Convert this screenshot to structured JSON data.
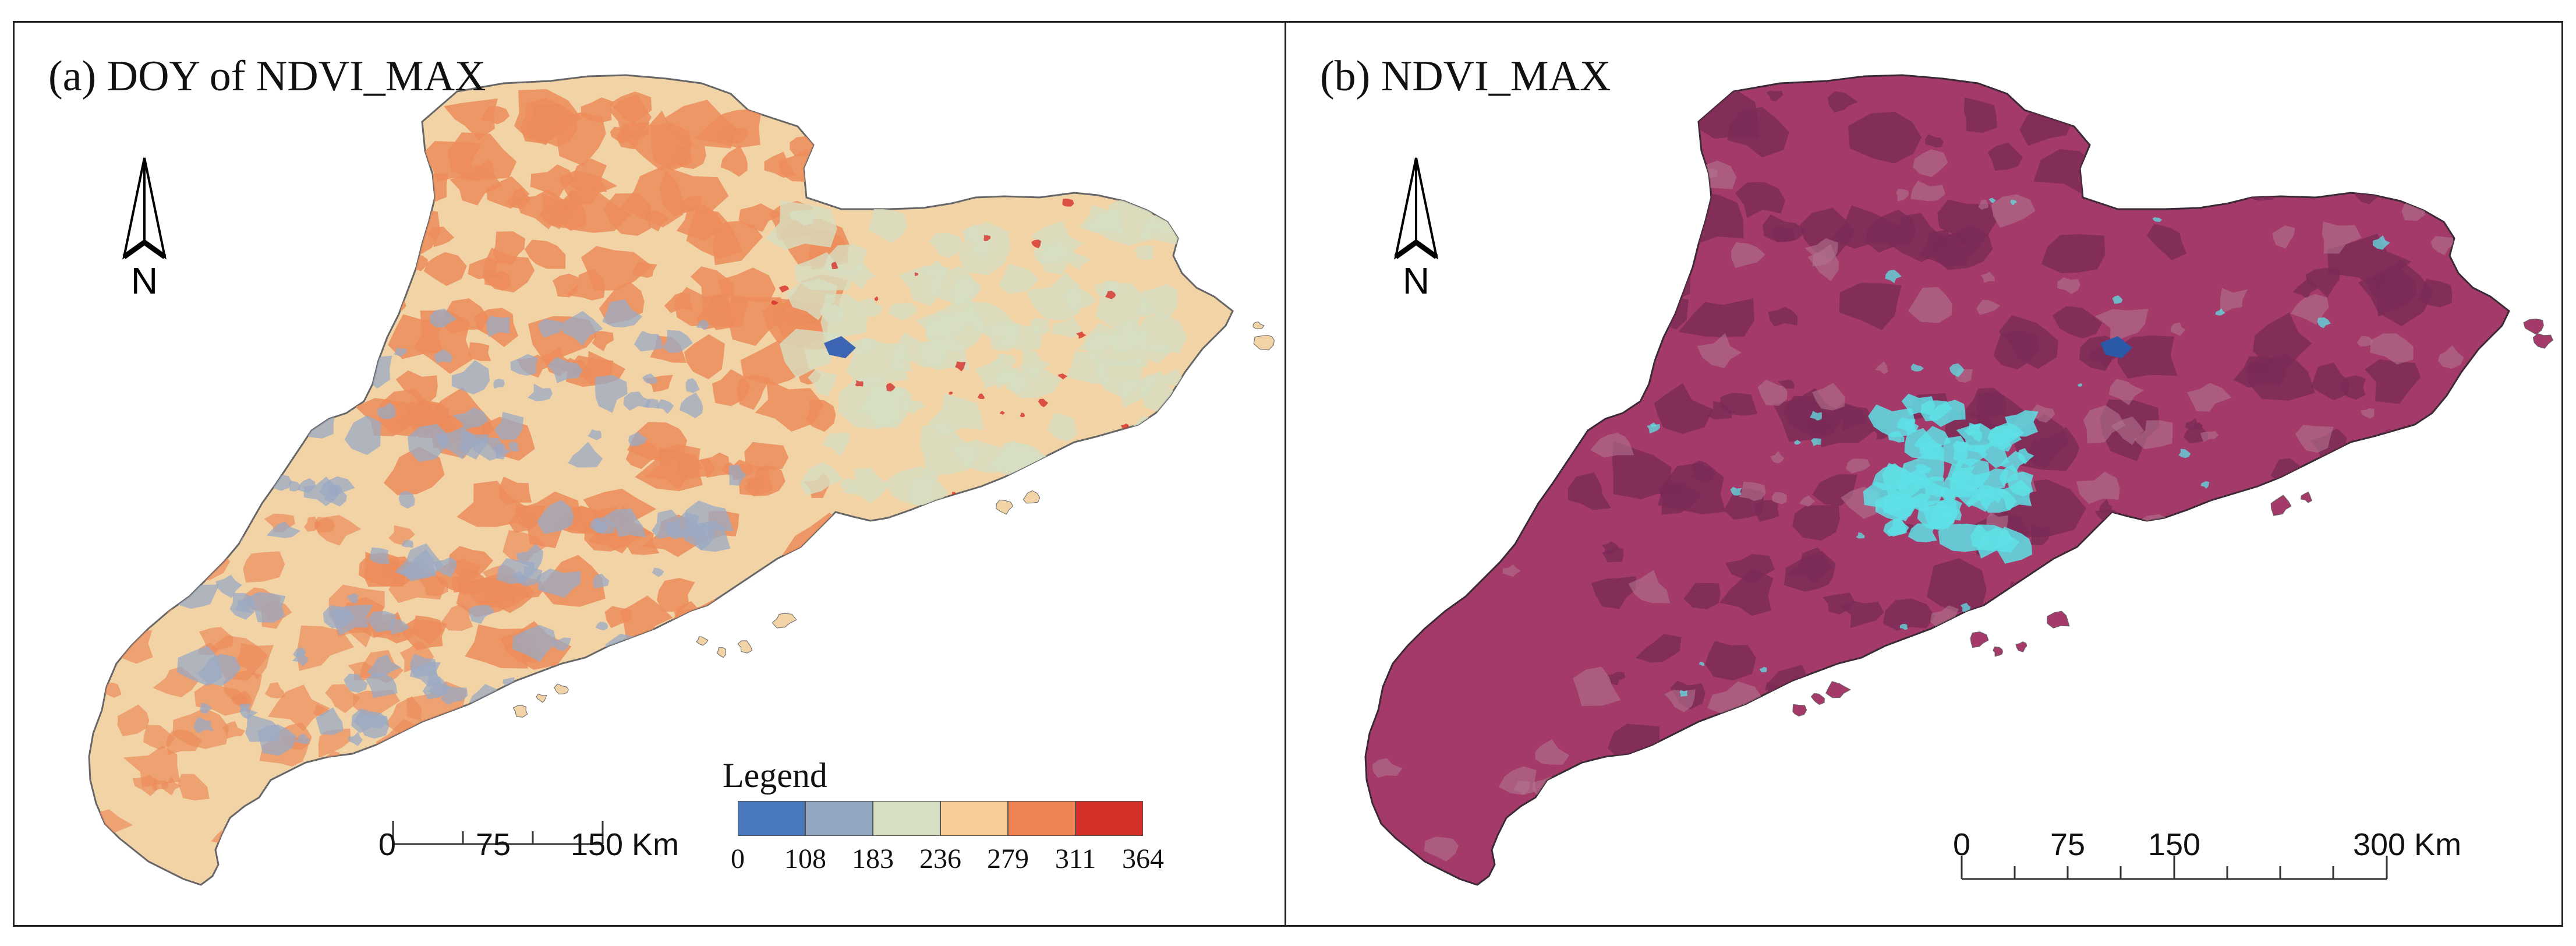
{
  "panels": {
    "a": {
      "title": "(a) DOY of NDVI_MAX",
      "north_label": "N",
      "scale": {
        "ticks": [
          "0",
          "75",
          "150 Km"
        ]
      },
      "legend": {
        "title": "Legend",
        "classes": [
          {
            "color": "#4a78bd",
            "from": 0,
            "to": 108
          },
          {
            "color": "#93a6c2",
            "from": 108,
            "to": 183
          },
          {
            "color": "#d7dfc2",
            "from": 183,
            "to": 236
          },
          {
            "color": "#f9cd97",
            "from": 236,
            "to": 279
          },
          {
            "color": "#ee8253",
            "from": 279,
            "to": 311
          },
          {
            "color": "#d6302b",
            "from": 311,
            "to": 364
          }
        ],
        "breaks": [
          "0",
          "108",
          "183",
          "236",
          "279",
          "311",
          "364"
        ]
      },
      "colors": {
        "base": "#f1d3a6",
        "patch_main": "#ec8c5b",
        "patch_second": "#9aaac4",
        "lake": "#3c66b3"
      }
    },
    "b": {
      "title": "(b) NDVI_MAX",
      "north_label": "N",
      "scale": {
        "ticks": [
          "0",
          "75",
          "150",
          "300 Km"
        ]
      },
      "colors": {
        "base": "#a43a69",
        "patch_main": "#7a2a55",
        "urban": "#5ee0e6",
        "lake": "#2a59a8"
      }
    }
  }
}
